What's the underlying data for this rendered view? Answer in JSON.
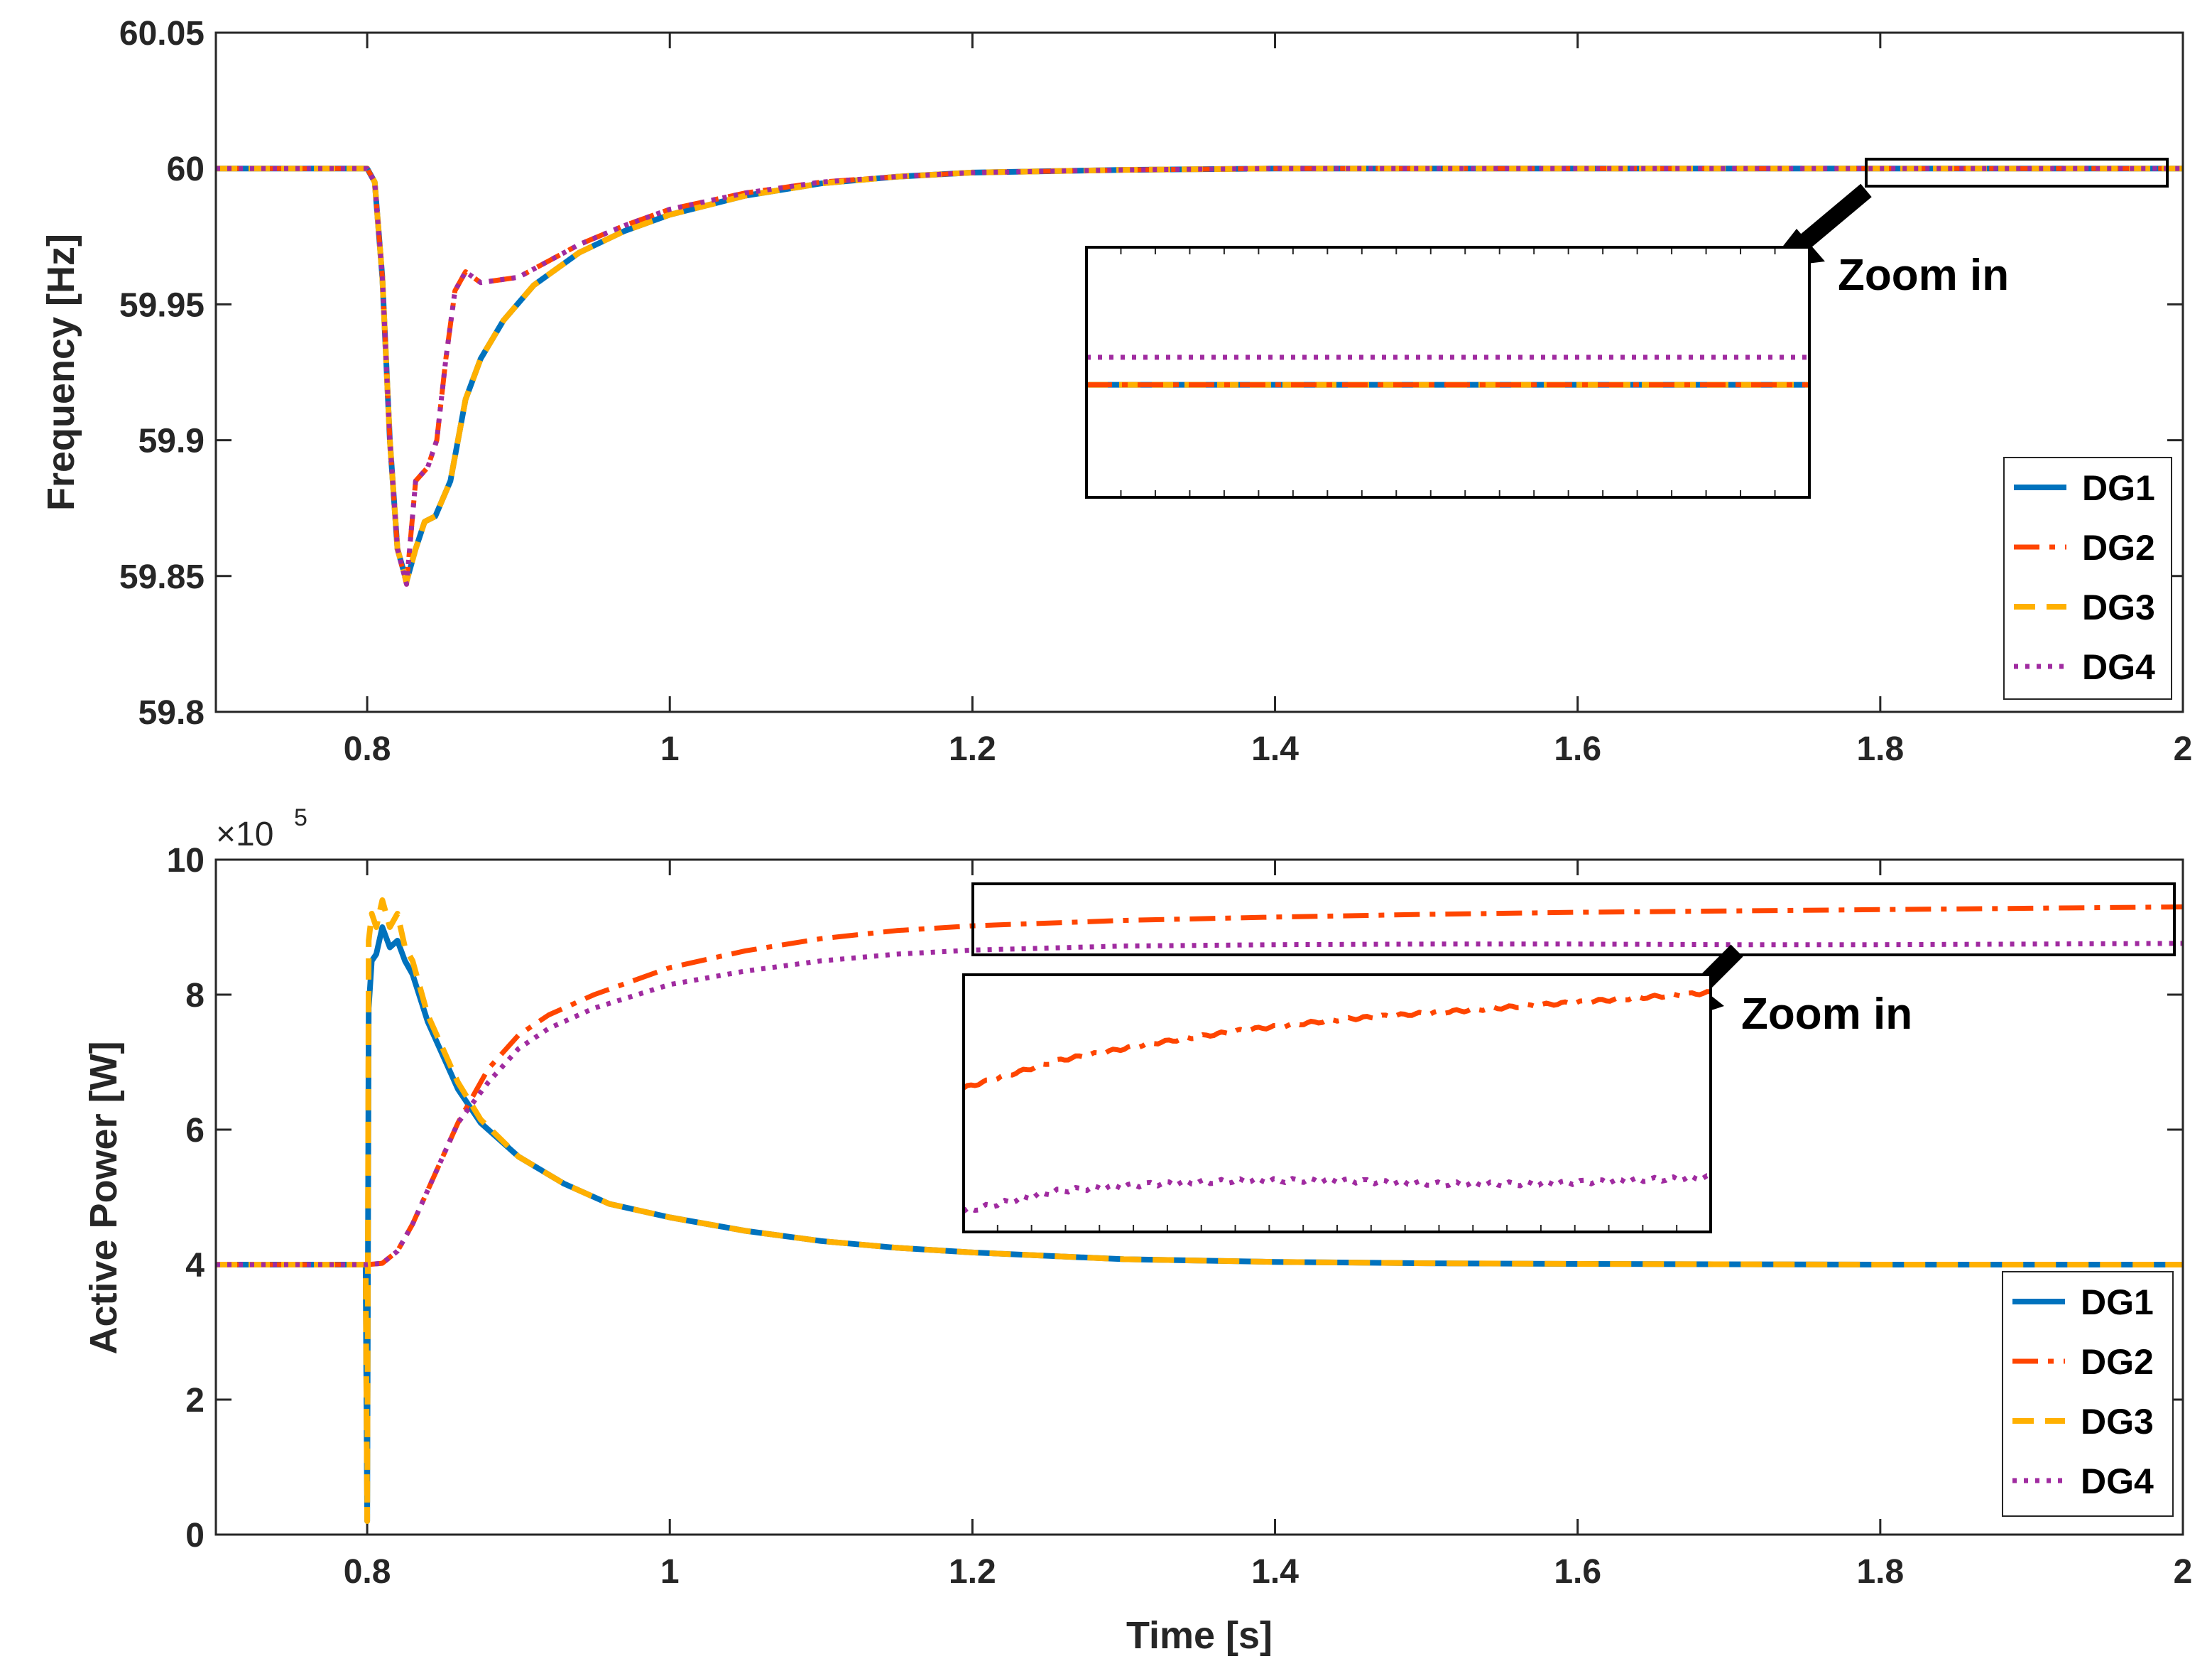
{
  "colors": {
    "DG1": "#0072BD",
    "DG2": "#FF4500",
    "DG3": "#FFB000",
    "DG4": "#A02BA0",
    "axis": "#262626",
    "box": "#000000"
  },
  "chart_data": [
    {
      "type": "line",
      "id": "frequency",
      "title": "",
      "xlabel": "",
      "ylabel": "Frequency [Hz]",
      "xlim": [
        0.7,
        2.0
      ],
      "ylim": [
        59.8,
        60.05
      ],
      "xticks": [
        0.8,
        1.0,
        1.2,
        1.4,
        1.6,
        1.8,
        2.0
      ],
      "xtick_labels": [
        "0.8",
        "1",
        "1.2",
        "1.4",
        "1.6",
        "1.8",
        "2"
      ],
      "yticks": [
        59.8,
        59.85,
        59.9,
        59.95,
        60.0,
        60.05
      ],
      "ytick_labels": [
        "59.8",
        "59.85",
        "59.9",
        "59.95",
        "60",
        "60.05"
      ],
      "legend": [
        "DG1",
        "DG2",
        "DG3",
        "DG4"
      ],
      "legend_loc": "bottom-right",
      "annotation": "Zoom in",
      "zoom_region": {
        "x": [
          1.79,
          2.0
        ],
        "y": [
          59.9965,
          60.0065
        ]
      },
      "series": [
        {
          "name": "DG1",
          "style": "solid",
          "x": [
            0.7,
            0.8,
            0.805,
            0.81,
            0.815,
            0.82,
            0.826,
            0.832,
            0.838,
            0.845,
            0.855,
            0.865,
            0.875,
            0.89,
            0.91,
            0.94,
            0.97,
            1.0,
            1.05,
            1.1,
            1.15,
            1.2,
            1.3,
            1.4,
            1.5,
            1.6,
            1.8,
            2.0
          ],
          "y": [
            60.0,
            60.0,
            59.995,
            59.96,
            59.9,
            59.86,
            59.848,
            59.86,
            59.87,
            59.872,
            59.885,
            59.915,
            59.93,
            59.944,
            59.957,
            59.969,
            59.977,
            59.983,
            59.99,
            59.9945,
            59.997,
            59.9985,
            59.9995,
            60.0,
            60.0,
            60.0,
            60.0,
            60.0
          ]
        },
        {
          "name": "DG2",
          "style": "dashdot",
          "x": [
            0.7,
            0.8,
            0.805,
            0.81,
            0.815,
            0.82,
            0.826,
            0.832,
            0.84,
            0.846,
            0.852,
            0.858,
            0.865,
            0.875,
            0.9,
            0.94,
            0.97,
            1.0,
            1.05,
            1.1,
            1.15,
            1.2,
            1.3,
            1.4,
            1.5,
            1.6,
            1.8,
            2.0
          ],
          "y": [
            60.0,
            60.0,
            59.995,
            59.96,
            59.9,
            59.86,
            59.847,
            59.885,
            59.89,
            59.9,
            59.93,
            59.955,
            59.962,
            59.958,
            59.96,
            59.972,
            59.979,
            59.985,
            59.991,
            59.995,
            59.997,
            59.9985,
            59.9995,
            60.0,
            60.0,
            60.0,
            60.0,
            60.0
          ]
        },
        {
          "name": "DG3",
          "style": "dashed",
          "x": [
            0.7,
            0.8,
            0.805,
            0.81,
            0.815,
            0.82,
            0.826,
            0.832,
            0.838,
            0.845,
            0.855,
            0.865,
            0.875,
            0.89,
            0.91,
            0.94,
            0.97,
            1.0,
            1.05,
            1.1,
            1.15,
            1.2,
            1.3,
            1.4,
            1.5,
            1.6,
            1.8,
            2.0
          ],
          "y": [
            60.0,
            60.0,
            59.995,
            59.96,
            59.9,
            59.86,
            59.848,
            59.86,
            59.87,
            59.872,
            59.885,
            59.915,
            59.93,
            59.944,
            59.957,
            59.969,
            59.977,
            59.983,
            59.99,
            59.9945,
            59.997,
            59.9985,
            59.9995,
            60.0,
            60.0,
            60.0,
            60.0,
            60.0
          ]
        },
        {
          "name": "DG4",
          "style": "dotted",
          "x": [
            0.7,
            0.8,
            0.805,
            0.81,
            0.815,
            0.82,
            0.826,
            0.832,
            0.84,
            0.846,
            0.852,
            0.858,
            0.865,
            0.875,
            0.9,
            0.94,
            0.97,
            1.0,
            1.05,
            1.1,
            1.15,
            1.2,
            1.3,
            1.4,
            1.5,
            1.6,
            1.8,
            2.0
          ],
          "y": [
            60.0,
            60.0,
            59.995,
            59.96,
            59.9,
            59.86,
            59.847,
            59.885,
            59.89,
            59.9,
            59.93,
            59.955,
            59.962,
            59.958,
            59.96,
            59.972,
            59.979,
            59.985,
            59.991,
            59.995,
            59.997,
            59.9985,
            59.9995,
            60.0,
            60.0,
            60.0,
            60.0,
            60.0
          ]
        }
      ],
      "inset_levels": {
        "DG1": 0.55,
        "DG2": 0.55,
        "DG3": 0.55,
        "DG4": 0.44
      }
    },
    {
      "type": "line",
      "id": "active_power",
      "title": "",
      "xlabel": "Time [s]",
      "ylabel": "Active Power [W]",
      "xlim": [
        0.7,
        2.0
      ],
      "ylim": [
        0,
        10
      ],
      "y_scale_label": "×10",
      "y_scale_exponent": "5",
      "xticks": [
        0.8,
        1.0,
        1.2,
        1.4,
        1.6,
        1.8,
        2.0
      ],
      "xtick_labels": [
        "0.8",
        "1",
        "1.2",
        "1.4",
        "1.6",
        "1.8",
        "2"
      ],
      "yticks": [
        0,
        2,
        4,
        6,
        8,
        10
      ],
      "ytick_labels": [
        "0",
        "2",
        "4",
        "6",
        "8",
        "10"
      ],
      "legend": [
        "DG1",
        "DG2",
        "DG3",
        "DG4"
      ],
      "legend_loc": "bottom-right",
      "annotation": "Zoom in",
      "zoom_region": {
        "x": [
          1.2,
          1.99
        ],
        "y": [
          8.5,
          9.8
        ]
      },
      "series": [
        {
          "name": "DG1",
          "style": "solid",
          "x": [
            0.7,
            0.799,
            0.8,
            0.801,
            0.803,
            0.806,
            0.81,
            0.815,
            0.82,
            0.825,
            0.83,
            0.84,
            0.85,
            0.86,
            0.875,
            0.9,
            0.93,
            0.96,
            1.0,
            1.05,
            1.1,
            1.15,
            1.2,
            1.3,
            1.4,
            1.5,
            1.6,
            1.8,
            2.0
          ],
          "y": [
            4.0,
            4.0,
            0.2,
            7.8,
            8.5,
            8.6,
            9.0,
            8.7,
            8.8,
            8.5,
            8.3,
            7.6,
            7.1,
            6.6,
            6.1,
            5.6,
            5.2,
            4.9,
            4.7,
            4.5,
            4.35,
            4.25,
            4.18,
            4.08,
            4.04,
            4.02,
            4.01,
            4.0,
            4.0
          ]
        },
        {
          "name": "DG2",
          "style": "dashdot",
          "x": [
            0.7,
            0.8,
            0.81,
            0.82,
            0.83,
            0.84,
            0.85,
            0.86,
            0.87,
            0.88,
            0.9,
            0.92,
            0.95,
            1.0,
            1.05,
            1.1,
            1.15,
            1.2,
            1.3,
            1.4,
            1.5,
            1.6,
            1.7,
            1.8,
            1.9,
            2.0
          ],
          "y": [
            4.0,
            4.0,
            4.02,
            4.2,
            4.6,
            5.1,
            5.6,
            6.1,
            6.5,
            6.9,
            7.4,
            7.7,
            8.0,
            8.4,
            8.65,
            8.83,
            8.95,
            9.02,
            9.1,
            9.15,
            9.19,
            9.22,
            9.24,
            9.26,
            9.28,
            9.3
          ]
        },
        {
          "name": "DG3",
          "style": "dashed",
          "x": [
            0.7,
            0.799,
            0.8,
            0.801,
            0.803,
            0.806,
            0.81,
            0.815,
            0.82,
            0.825,
            0.83,
            0.84,
            0.85,
            0.86,
            0.875,
            0.9,
            0.93,
            0.96,
            1.0,
            1.05,
            1.1,
            1.15,
            1.2,
            1.3,
            1.4,
            1.5,
            1.6,
            1.8,
            2.0
          ],
          "y": [
            4.0,
            4.0,
            0.2,
            8.8,
            9.2,
            9.0,
            9.4,
            9.0,
            9.2,
            8.7,
            8.5,
            7.7,
            7.2,
            6.7,
            6.15,
            5.6,
            5.2,
            4.9,
            4.7,
            4.5,
            4.35,
            4.25,
            4.18,
            4.08,
            4.04,
            4.02,
            4.01,
            4.0,
            4.0
          ]
        },
        {
          "name": "DG4",
          "style": "dotted",
          "x": [
            0.7,
            0.8,
            0.81,
            0.82,
            0.83,
            0.84,
            0.85,
            0.86,
            0.87,
            0.88,
            0.9,
            0.92,
            0.95,
            1.0,
            1.05,
            1.1,
            1.15,
            1.2,
            1.3,
            1.4,
            1.5,
            1.6,
            1.7,
            1.8,
            1.9,
            2.0
          ],
          "y": [
            4.0,
            4.0,
            4.02,
            4.2,
            4.6,
            5.1,
            5.6,
            6.1,
            6.4,
            6.7,
            7.2,
            7.5,
            7.8,
            8.15,
            8.35,
            8.5,
            8.6,
            8.66,
            8.72,
            8.74,
            8.75,
            8.75,
            8.74,
            8.74,
            8.75,
            8.76
          ]
        }
      ]
    }
  ]
}
